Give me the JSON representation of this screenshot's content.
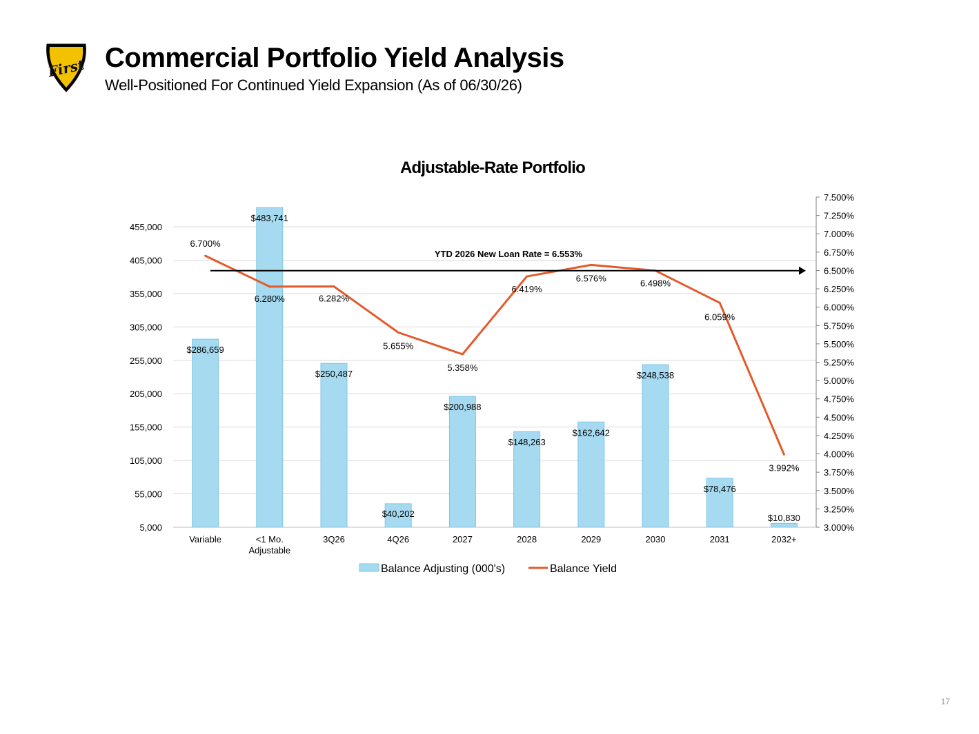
{
  "header": {
    "title": "Commercial Portfolio Yield Analysis",
    "subtitle": "Well-Positioned For Continued Yield Expansion (As of 06/30/26)",
    "logo_text": "First"
  },
  "page_number": "17",
  "colors": {
    "bar_fill": "#a6daf0",
    "bar_stroke": "#7fc6e4",
    "line": "#e35a2a",
    "reference_line": "#000000",
    "gridline": "#d9d9d9"
  },
  "chart_data": {
    "type": "bar",
    "title": "Adjustable-Rate Portfolio",
    "categories": [
      "Variable",
      "<1 Mo.\nAdjustable",
      "3Q26",
      "4Q26",
      "2027",
      "2028",
      "2029",
      "2030",
      "2031",
      "2032+"
    ],
    "series": [
      {
        "name": "Balance Adjusting (000's)",
        "type": "bar",
        "axis": "left",
        "values": [
          286659,
          483741,
          250487,
          40202,
          200988,
          148263,
          162642,
          248538,
          78476,
          10830
        ],
        "labels": [
          "$286,659",
          "$483,741",
          "$250,487",
          "$40,202",
          "$200,988",
          "$148,263",
          "$162,642",
          "$248,538",
          "$78,476",
          "$10,830"
        ]
      },
      {
        "name": "Balance Yield",
        "type": "line",
        "axis": "right",
        "values": [
          6.7,
          6.28,
          6.282,
          5.655,
          5.358,
          6.419,
          6.576,
          6.498,
          6.059,
          3.992
        ],
        "labels": [
          "6.700%",
          "6.280%",
          "6.282%",
          "5.655%",
          "5.358%",
          "6.419%",
          "6.576%",
          "6.498%",
          "6.059%",
          "3.992%"
        ]
      }
    ],
    "reference_line": {
      "label": "YTD 2026 New Loan Rate = 6.553%",
      "value": 6.553,
      "axis": "right"
    },
    "y_left": {
      "ylim": [
        5000,
        485000
      ],
      "ticks": [
        5000,
        55000,
        105000,
        155000,
        205000,
        255000,
        305000,
        355000,
        405000,
        455000
      ],
      "tick_labels": [
        "5,000",
        "55,000",
        "105,000",
        "155,000",
        "205,000",
        "255,000",
        "305,000",
        "355,000",
        "405,000",
        "455,000"
      ]
    },
    "y_right": {
      "ylim": [
        3.0,
        7.5
      ],
      "ticks": [
        3.0,
        3.25,
        3.5,
        3.75,
        4.0,
        4.25,
        4.5,
        4.75,
        5.0,
        5.25,
        5.5,
        5.75,
        6.0,
        6.25,
        6.5,
        6.75,
        7.0,
        7.25,
        7.5
      ],
      "tick_labels": [
        "3.000%",
        "3.250%",
        "3.500%",
        "3.750%",
        "4.000%",
        "4.250%",
        "4.500%",
        "4.750%",
        "5.000%",
        "5.250%",
        "5.500%",
        "5.750%",
        "6.000%",
        "6.250%",
        "6.500%",
        "6.750%",
        "7.000%",
        "7.250%",
        "7.500%"
      ]
    },
    "grid": true,
    "legend": "bottom"
  }
}
